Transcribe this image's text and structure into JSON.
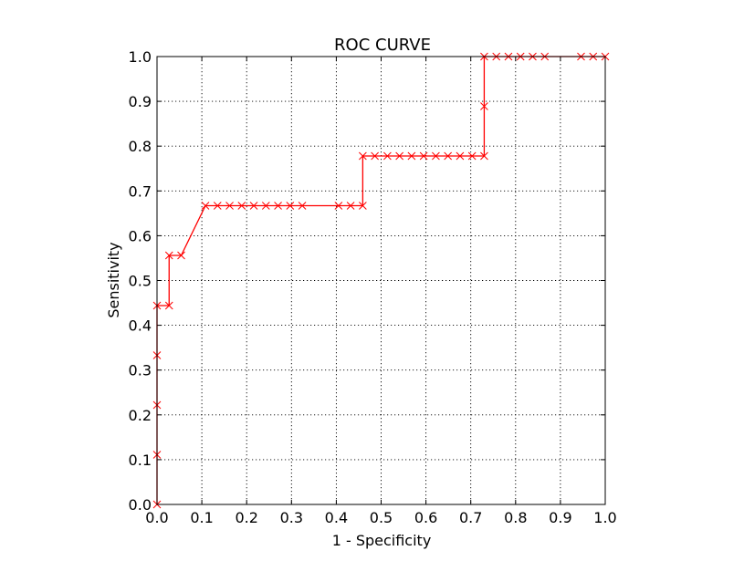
{
  "chart_data": {
    "type": "line",
    "title": "ROC CURVE",
    "xlabel": "1 - Specificity",
    "ylabel": "Sensitivity",
    "xlim": [
      0.0,
      1.0
    ],
    "ylim": [
      0.0,
      1.0
    ],
    "x_ticks": [
      "0.0",
      "0.1",
      "0.2",
      "0.3",
      "0.4",
      "0.5",
      "0.6",
      "0.7",
      "0.8",
      "0.9",
      "1.0"
    ],
    "y_ticks": [
      "0.0",
      "0.1",
      "0.2",
      "0.3",
      "0.4",
      "0.5",
      "0.6",
      "0.7",
      "0.8",
      "0.9",
      "1.0"
    ],
    "grid": true,
    "legend": false,
    "series": [
      {
        "color": "#ff0000",
        "marker": "x",
        "points": [
          [
            0.0,
            0.0
          ],
          [
            0.0,
            0.111
          ],
          [
            0.0,
            0.222
          ],
          [
            0.0,
            0.333
          ],
          [
            0.0,
            0.444
          ],
          [
            0.027,
            0.444
          ],
          [
            0.027,
            0.556
          ],
          [
            0.054,
            0.556
          ],
          [
            0.108,
            0.667
          ],
          [
            0.135,
            0.667
          ],
          [
            0.162,
            0.667
          ],
          [
            0.189,
            0.667
          ],
          [
            0.216,
            0.667
          ],
          [
            0.243,
            0.667
          ],
          [
            0.27,
            0.667
          ],
          [
            0.297,
            0.667
          ],
          [
            0.324,
            0.667
          ],
          [
            0.405,
            0.667
          ],
          [
            0.432,
            0.667
          ],
          [
            0.459,
            0.667
          ],
          [
            0.459,
            0.778
          ],
          [
            0.486,
            0.778
          ],
          [
            0.514,
            0.778
          ],
          [
            0.541,
            0.778
          ],
          [
            0.568,
            0.778
          ],
          [
            0.595,
            0.778
          ],
          [
            0.622,
            0.778
          ],
          [
            0.649,
            0.778
          ],
          [
            0.676,
            0.778
          ],
          [
            0.703,
            0.778
          ],
          [
            0.73,
            0.778
          ],
          [
            0.73,
            0.889
          ],
          [
            0.73,
            1.0
          ],
          [
            0.757,
            1.0
          ],
          [
            0.784,
            1.0
          ],
          [
            0.811,
            1.0
          ],
          [
            0.838,
            1.0
          ],
          [
            0.865,
            1.0
          ],
          [
            0.946,
            1.0
          ],
          [
            0.973,
            1.0
          ],
          [
            1.0,
            1.0
          ]
        ]
      }
    ]
  }
}
